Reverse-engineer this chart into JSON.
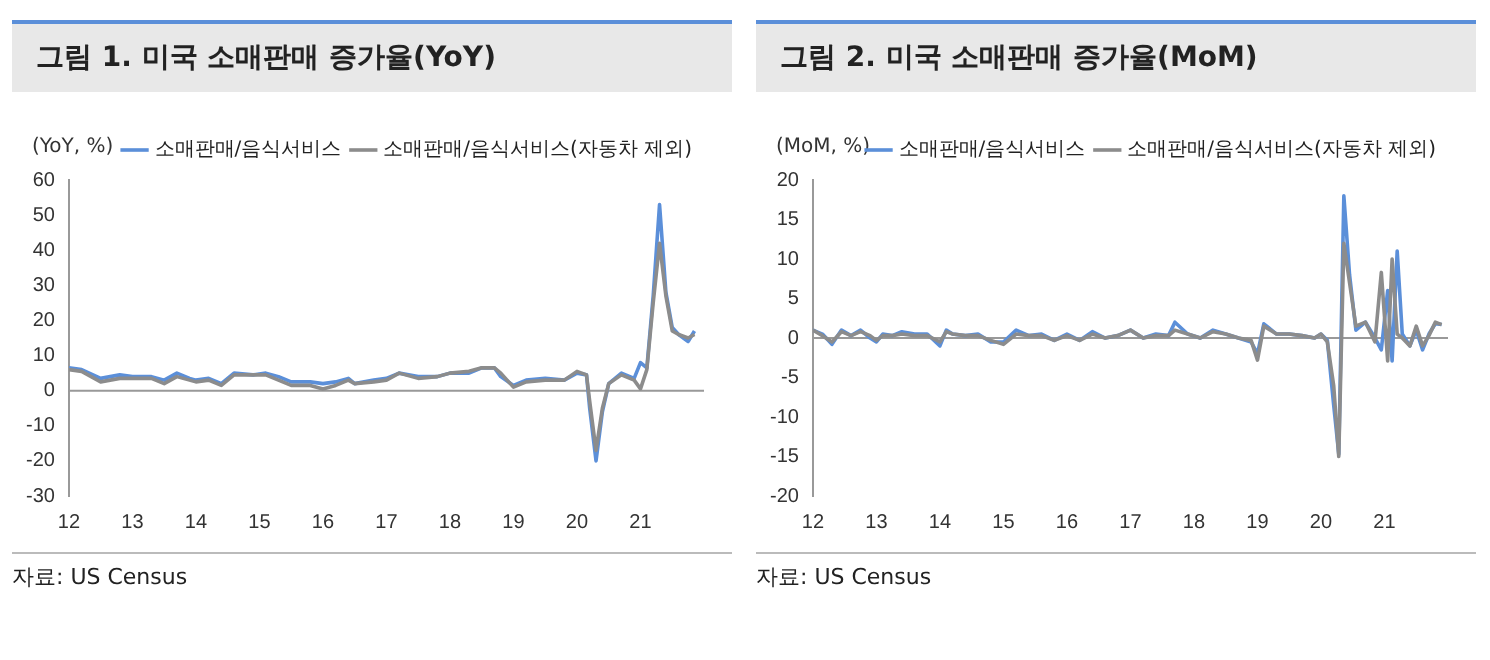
{
  "chart_data": [
    {
      "type": "line",
      "title": "그림 1. 미국 소매판매 증가율(YoY)",
      "ylabel": "(YoY, %)",
      "annotations": [
        "자료: US Census"
      ],
      "legend": "top",
      "marker": "none",
      "grid": false,
      "xlim": [
        2012,
        2022
      ],
      "xticks": [
        {
          "value": 2012,
          "label": "12"
        },
        {
          "value": 2013,
          "label": "13"
        },
        {
          "value": 2014,
          "label": "14"
        },
        {
          "value": 2015,
          "label": "15"
        },
        {
          "value": 2016,
          "label": "16"
        },
        {
          "value": 2017,
          "label": "17"
        },
        {
          "value": 2018,
          "label": "18"
        },
        {
          "value": 2019,
          "label": "19"
        },
        {
          "value": 2020,
          "label": "20"
        },
        {
          "value": 2021,
          "label": "21"
        }
      ],
      "ylim": [
        -30,
        60
      ],
      "yticks": [
        -30,
        -20,
        -10,
        0,
        10,
        20,
        30,
        40,
        50,
        60
      ],
      "ref_lines": [
        {
          "axis": "y",
          "value": 0
        }
      ],
      "series": [
        {
          "name": "소매판매/음식서비스",
          "color": "#5b8fd9",
          "x": [
            2012.0,
            2012.2,
            2012.5,
            2012.8,
            2013.0,
            2013.3,
            2013.5,
            2013.7,
            2013.9,
            2014.0,
            2014.2,
            2014.4,
            2014.6,
            2014.9,
            2015.1,
            2015.3,
            2015.5,
            2015.8,
            2016.0,
            2016.2,
            2016.4,
            2016.5,
            2016.8,
            2017.0,
            2017.2,
            2017.5,
            2017.8,
            2018.0,
            2018.3,
            2018.5,
            2018.7,
            2018.8,
            2019.0,
            2019.2,
            2019.5,
            2019.8,
            2020.0,
            2020.15,
            2020.2,
            2020.3,
            2020.4,
            2020.5,
            2020.7,
            2020.9,
            2021.0,
            2021.1,
            2021.2,
            2021.3,
            2021.4,
            2021.5,
            2021.6,
            2021.75,
            2021.85
          ],
          "values": [
            6.5,
            6,
            3.5,
            4.5,
            4,
            4,
            3,
            5,
            3.5,
            3,
            3.5,
            2,
            5,
            4.5,
            5,
            4,
            2.5,
            2.5,
            2,
            2.5,
            3.5,
            2,
            3,
            3.5,
            5,
            4,
            4,
            5,
            5,
            6.5,
            6.5,
            4,
            1.5,
            3,
            3.5,
            3,
            5,
            4.5,
            -5,
            -20,
            -6,
            2,
            5,
            3.5,
            8,
            6.5,
            27,
            53,
            28,
            18,
            16,
            14,
            17
          ]
        },
        {
          "name": "소매판매/음식서비스(자동차 제외)",
          "color": "#8c8c8c",
          "x": [
            2012.0,
            2012.2,
            2012.5,
            2012.8,
            2013.0,
            2013.3,
            2013.5,
            2013.7,
            2013.9,
            2014.0,
            2014.2,
            2014.4,
            2014.6,
            2014.9,
            2015.1,
            2015.3,
            2015.5,
            2015.8,
            2016.0,
            2016.2,
            2016.4,
            2016.5,
            2016.8,
            2017.0,
            2017.2,
            2017.5,
            2017.8,
            2018.0,
            2018.3,
            2018.5,
            2018.7,
            2018.8,
            2019.0,
            2019.2,
            2019.5,
            2019.8,
            2020.0,
            2020.15,
            2020.2,
            2020.3,
            2020.4,
            2020.5,
            2020.7,
            2020.9,
            2021.0,
            2021.1,
            2021.2,
            2021.3,
            2021.4,
            2021.5,
            2021.6,
            2021.75,
            2021.85
          ],
          "values": [
            6,
            5.5,
            2.5,
            3.5,
            3.5,
            3.5,
            2,
            4,
            3,
            2.5,
            3,
            1.5,
            4.5,
            4.5,
            4.5,
            3,
            1.5,
            1.5,
            0.5,
            1.5,
            3,
            2,
            2.5,
            3,
            5,
            3.5,
            4,
            5,
            5.5,
            6.5,
            6.5,
            5,
            1,
            2.5,
            3,
            3,
            5.5,
            4.5,
            -3,
            -17,
            -5,
            2,
            4.5,
            3,
            0.5,
            6,
            25,
            42,
            27,
            17,
            16,
            15,
            16
          ]
        }
      ]
    },
    {
      "type": "line",
      "title": "그림 2. 미국 소매판매 증가율(MoM)",
      "ylabel": "(MoM, %)",
      "annotations": [
        "자료: US Census"
      ],
      "legend": "top",
      "marker": "none",
      "grid": false,
      "xlim": [
        2012,
        2022
      ],
      "xticks": [
        {
          "value": 2012,
          "label": "12"
        },
        {
          "value": 2013,
          "label": "13"
        },
        {
          "value": 2014,
          "label": "14"
        },
        {
          "value": 2015,
          "label": "15"
        },
        {
          "value": 2016,
          "label": "16"
        },
        {
          "value": 2017,
          "label": "17"
        },
        {
          "value": 2018,
          "label": "18"
        },
        {
          "value": 2019,
          "label": "19"
        },
        {
          "value": 2020,
          "label": "20"
        },
        {
          "value": 2021,
          "label": "21"
        }
      ],
      "ylim": [
        -20,
        20
      ],
      "yticks": [
        -20,
        -15,
        -10,
        -5,
        0,
        5,
        10,
        15,
        20
      ],
      "ref_lines": [
        {
          "axis": "y",
          "value": 0
        }
      ],
      "series": [
        {
          "name": "소매판매/음식서비스",
          "color": "#5b8fd9",
          "x": [
            2012.0,
            2012.15,
            2012.3,
            2012.45,
            2012.6,
            2012.75,
            2012.9,
            2013.0,
            2013.1,
            2013.25,
            2013.4,
            2013.6,
            2013.8,
            2014.0,
            2014.1,
            2014.2,
            2014.4,
            2014.6,
            2014.8,
            2015.0,
            2015.2,
            2015.4,
            2015.6,
            2015.8,
            2016.0,
            2016.2,
            2016.4,
            2016.6,
            2016.8,
            2017.0,
            2017.2,
            2017.4,
            2017.6,
            2017.7,
            2017.9,
            2018.1,
            2018.3,
            2018.5,
            2018.7,
            2018.9,
            2019.0,
            2019.1,
            2019.3,
            2019.5,
            2019.7,
            2019.9,
            2020.0,
            2020.1,
            2020.2,
            2020.28,
            2020.36,
            2020.45,
            2020.55,
            2020.7,
            2020.85,
            2020.95,
            2021.05,
            2021.12,
            2021.2,
            2021.28,
            2021.4,
            2021.5,
            2021.6,
            2021.7,
            2021.8,
            2021.9
          ],
          "values": [
            1,
            0.5,
            -0.8,
            1,
            0.3,
            1,
            0,
            -0.5,
            0.5,
            0.3,
            0.8,
            0.5,
            0.5,
            -1,
            1,
            0.5,
            0.3,
            0.5,
            -0.5,
            -0.5,
            1,
            0.3,
            0.5,
            -0.3,
            0.5,
            -0.3,
            0.8,
            0,
            0.3,
            1,
            0,
            0.5,
            0.3,
            2,
            0.5,
            0,
            1,
            0.5,
            0,
            -0.5,
            -2,
            1.8,
            0.5,
            0.5,
            0.3,
            0,
            0.5,
            -0.3,
            -8.5,
            -14.7,
            18,
            8,
            1,
            2,
            0,
            -1.5,
            6,
            -2.9,
            11,
            0.5,
            -1,
            1,
            -1.5,
            0.5,
            1.8,
            1.7
          ]
        },
        {
          "name": "소매판매/음식서비스(자동차 제외)",
          "color": "#8c8c8c",
          "x": [
            2012.0,
            2012.15,
            2012.3,
            2012.45,
            2012.6,
            2012.75,
            2012.9,
            2013.0,
            2013.1,
            2013.25,
            2013.4,
            2013.6,
            2013.8,
            2014.0,
            2014.1,
            2014.2,
            2014.4,
            2014.6,
            2014.8,
            2015.0,
            2015.2,
            2015.4,
            2015.6,
            2015.8,
            2016.0,
            2016.2,
            2016.4,
            2016.6,
            2016.8,
            2017.0,
            2017.2,
            2017.4,
            2017.6,
            2017.7,
            2017.9,
            2018.1,
            2018.3,
            2018.5,
            2018.7,
            2018.9,
            2019.0,
            2019.1,
            2019.3,
            2019.5,
            2019.7,
            2019.9,
            2020.0,
            2020.1,
            2020.2,
            2020.28,
            2020.36,
            2020.45,
            2020.55,
            2020.7,
            2020.85,
            2020.95,
            2021.05,
            2021.12,
            2021.2,
            2021.28,
            2021.4,
            2021.5,
            2021.6,
            2021.7,
            2021.8,
            2021.9
          ],
          "values": [
            1,
            0.3,
            -0.5,
            0.8,
            0.3,
            0.8,
            0.3,
            -0.3,
            0.3,
            0.3,
            0.5,
            0.3,
            0.3,
            -0.5,
            0.8,
            0.5,
            0.3,
            0.3,
            -0.3,
            -0.8,
            0.5,
            0.3,
            0.3,
            -0.3,
            0.3,
            -0.3,
            0.5,
            0,
            0.3,
            1,
            0,
            0.3,
            0.3,
            1,
            0.5,
            0,
            0.8,
            0.5,
            0,
            -0.3,
            -2.8,
            1.5,
            0.5,
            0.5,
            0.3,
            0,
            0.5,
            -0.5,
            -6,
            -15,
            12,
            7,
            1.5,
            2,
            -0.5,
            8.3,
            -2.9,
            10,
            0.5,
            0,
            -1,
            1.5,
            -1,
            0.3,
            2,
            1.7
          ]
        }
      ]
    }
  ]
}
